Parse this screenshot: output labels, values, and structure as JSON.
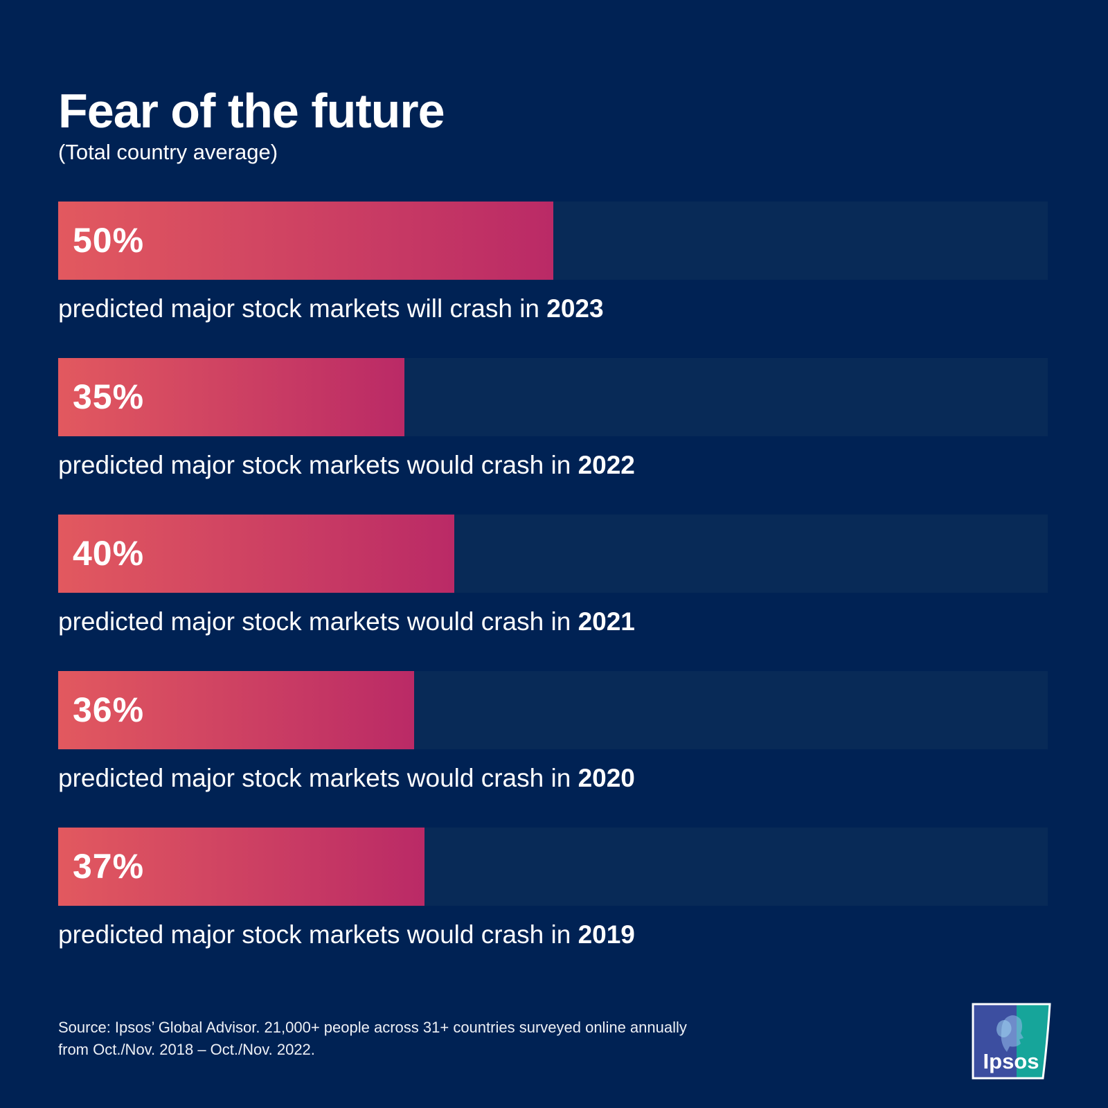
{
  "title": "Fear of the future",
  "subtitle": "(Total country average)",
  "chart_data": {
    "type": "bar",
    "orientation": "horizontal",
    "title": "Fear of the future",
    "subtitle": "(Total country average)",
    "xlim": [
      0,
      100
    ],
    "unit": "%",
    "bars": [
      {
        "value": 50,
        "label": "50%",
        "caption": "predicted major stock markets will crash in ",
        "year": "2023"
      },
      {
        "value": 35,
        "label": "35%",
        "caption": "predicted major stock markets would crash in ",
        "year": "2022"
      },
      {
        "value": 40,
        "label": "40%",
        "caption": "predicted major stock markets would crash in ",
        "year": "2021"
      },
      {
        "value": 36,
        "label": "36%",
        "caption": "predicted major stock markets would crash in ",
        "year": "2020"
      },
      {
        "value": 37,
        "label": "37%",
        "caption": "predicted major stock markets would crash in ",
        "year": "2019"
      }
    ]
  },
  "source": {
    "line1": "Source: Ipsos’ Global Advisor. 21,000+ people across 31+ countries surveyed online annually",
    "line2": "from Oct./Nov. 2018 – Oct./Nov. 2022."
  },
  "logo": {
    "text": "Ipsos",
    "colors": {
      "blue": "#3c4ea0",
      "teal": "#16a59a"
    }
  },
  "colors": {
    "background": "#002254",
    "track": "#082a57",
    "bar_start": "#e2595f",
    "bar_end": "#ba2a66",
    "text": "#ffffff"
  }
}
